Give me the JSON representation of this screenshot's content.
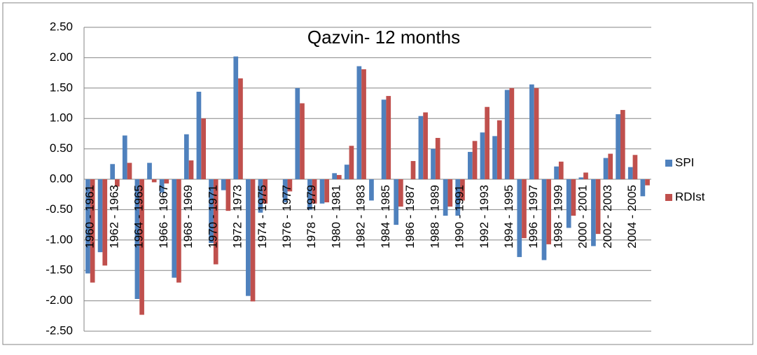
{
  "chart_data": {
    "type": "bar",
    "title": "Qazvin- 12 months",
    "categories": [
      "1960 - 1961",
      null,
      "1962 - 1963",
      null,
      "1964 - 1965",
      null,
      "1966 - 1967",
      null,
      "1968 - 1969",
      null,
      "1970 - 1971",
      null,
      "1972 - 1973",
      null,
      "1974 - 1975",
      null,
      "1976 - 1977",
      null,
      "1978 - 1979",
      null,
      "1980 - 1981",
      null,
      "1982 - 1983",
      null,
      "1984 - 1985",
      null,
      "1986 - 1987",
      null,
      "1988 - 1989",
      null,
      "1990 - 1991",
      null,
      "1992 - 1993",
      null,
      "1994 - 1995",
      null,
      "1996 - 1997",
      null,
      "1998 - 1999",
      null,
      "2000 - 2001",
      null,
      "2002 - 2003",
      null,
      "2004 - 2005",
      null
    ],
    "series": [
      {
        "name": "SPI",
        "color": "#4f81bd",
        "values": [
          -1.55,
          -1.2,
          0.25,
          0.72,
          -1.97,
          0.27,
          -0.22,
          -1.62,
          0.74,
          1.44,
          -1.05,
          -0.18,
          2.02,
          -1.92,
          -0.55,
          0,
          -0.38,
          1.5,
          -0.5,
          -0.4,
          0.1,
          0.24,
          1.86,
          -0.35,
          1.31,
          -0.75,
          0,
          1.04,
          0.5,
          -0.6,
          -0.6,
          0.45,
          0.77,
          0.71,
          1.47,
          -1.28,
          1.56,
          -1.33,
          0.21,
          -0.8,
          0.03,
          -1.1,
          0.35,
          1.07,
          0.2,
          -0.28
        ]
      },
      {
        "name": "RDIst",
        "color": "#c0504d",
        "values": [
          -1.7,
          -1.42,
          -0.12,
          0.27,
          -2.23,
          -0.05,
          -0.07,
          -1.7,
          0.31,
          1.0,
          -1.4,
          -0.52,
          1.66,
          -2.01,
          -0.4,
          0,
          -0.2,
          1.25,
          -0.4,
          -0.38,
          0.07,
          0.55,
          1.81,
          0,
          1.37,
          -0.45,
          0.3,
          1.1,
          0.68,
          -0.45,
          -0.35,
          0.63,
          1.19,
          0.97,
          1.5,
          -0.97,
          1.5,
          -1.07,
          0.29,
          -0.6,
          0.11,
          -0.9,
          0.42,
          1.14,
          0.4,
          -0.1
        ]
      }
    ],
    "ylim": [
      -2.5,
      2.5
    ],
    "yticks": [
      {
        "value": -2.5,
        "label": "-2.50"
      },
      {
        "value": -2,
        "label": "-2.00"
      },
      {
        "value": -1.5,
        "label": "-1.50"
      },
      {
        "value": -1,
        "label": "-1.00"
      },
      {
        "value": -0.5,
        "label": "-0.50"
      },
      {
        "value": 0,
        "label": "0.00"
      },
      {
        "value": 0.5,
        "label": "0.50"
      },
      {
        "value": 1,
        "label": "1.00"
      },
      {
        "value": 1.5,
        "label": "1.50"
      },
      {
        "value": 2,
        "label": "2.00"
      },
      {
        "value": 2.5,
        "label": "2.50"
      }
    ],
    "grid": true,
    "legend": "right"
  }
}
